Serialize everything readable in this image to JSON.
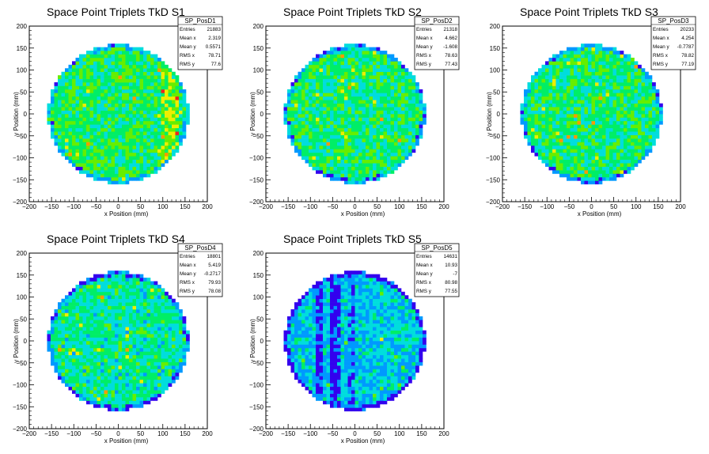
{
  "chart_data": [
    {
      "type": "heatmap",
      "title": "Space Point Triplets TkD S1",
      "xlabel": "x Position (mm)",
      "ylabel": "y Position (mm)",
      "xlim": [
        -200,
        200
      ],
      "ylim": [
        -200,
        200
      ],
      "xticks": [
        "−200",
        "−150",
        "−100",
        "−50",
        "0",
        "50",
        "100",
        "150",
        "200"
      ],
      "yticks": [
        "−200",
        "−150",
        "−100",
        "−50",
        "0",
        "50",
        "100",
        "150",
        "200"
      ],
      "colormap": [
        "#3300ee",
        "#0099ff",
        "#00dddd",
        "#00ee66",
        "#66ee00",
        "#eeee00",
        "#ff9900",
        "#ee2222"
      ],
      "radius_mm": 160,
      "mean_level": 0.45,
      "right_band": true,
      "stats": {
        "name": "SP_PosD1",
        "rows": [
          {
            "label": "Entries",
            "value": "21883"
          },
          {
            "label": "Mean x",
            "value": "2.319"
          },
          {
            "label": "Mean y",
            "value": "0.5571"
          },
          {
            "label": "RMS x",
            "value": "78.71"
          },
          {
            "label": "RMS y",
            "value": "77.6"
          }
        ]
      }
    },
    {
      "type": "heatmap",
      "title": "Space Point Triplets TkD S2",
      "xlabel": "x Position (mm)",
      "ylabel": "y Position (mm)",
      "xlim": [
        -200,
        200
      ],
      "ylim": [
        -200,
        200
      ],
      "xticks": [
        "−200",
        "−150",
        "−100",
        "−50",
        "0",
        "50",
        "100",
        "150",
        "200"
      ],
      "yticks": [
        "−200",
        "−150",
        "−100",
        "−50",
        "0",
        "50",
        "100",
        "150",
        "200"
      ],
      "colormap": [
        "#3300ee",
        "#0099ff",
        "#00dddd",
        "#00ee66",
        "#66ee00",
        "#eeee00",
        "#ff9900",
        "#ee2222"
      ],
      "radius_mm": 160,
      "mean_level": 0.43,
      "stats": {
        "name": "SP_PosD2",
        "rows": [
          {
            "label": "Entries",
            "value": "21318"
          },
          {
            "label": "Mean x",
            "value": "4.662"
          },
          {
            "label": "Mean y",
            "value": "-1.608"
          },
          {
            "label": "RMS x",
            "value": "78.63"
          },
          {
            "label": "RMS y",
            "value": "77.43"
          }
        ]
      }
    },
    {
      "type": "heatmap",
      "title": "Space Point Triplets TkD S3",
      "xlabel": "x Position (mm)",
      "ylabel": "y Position (mm)",
      "xlim": [
        -200,
        200
      ],
      "ylim": [
        -200,
        200
      ],
      "xticks": [
        "−200",
        "−150",
        "−100",
        "−50",
        "0",
        "50",
        "100",
        "150",
        "200"
      ],
      "yticks": [
        "−200",
        "−150",
        "−100",
        "−50",
        "0",
        "50",
        "100",
        "150",
        "200"
      ],
      "colormap": [
        "#3300ee",
        "#0099ff",
        "#00dddd",
        "#00ee66",
        "#66ee00",
        "#eeee00",
        "#ff9900",
        "#ee2222"
      ],
      "radius_mm": 160,
      "mean_level": 0.43,
      "stats": {
        "name": "SP_PosD3",
        "rows": [
          {
            "label": "Entries",
            "value": "20233"
          },
          {
            "label": "Mean x",
            "value": "4.254"
          },
          {
            "label": "Mean y",
            "value": "-0.7787"
          },
          {
            "label": "RMS x",
            "value": "78.82"
          },
          {
            "label": "RMS y",
            "value": "77.19"
          }
        ]
      }
    },
    {
      "type": "heatmap",
      "title": "Space Point Triplets TkD S4",
      "xlabel": "x Position (mm)",
      "ylabel": "y Position (mm)",
      "xlim": [
        -200,
        200
      ],
      "ylim": [
        -200,
        200
      ],
      "xticks": [
        "−200",
        "−150",
        "−100",
        "−50",
        "0",
        "50",
        "100",
        "150",
        "200"
      ],
      "yticks": [
        "−200",
        "−150",
        "−100",
        "−50",
        "0",
        "50",
        "100",
        "150",
        "200"
      ],
      "colormap": [
        "#3300ee",
        "#0099ff",
        "#00dddd",
        "#00ee66",
        "#66ee00",
        "#eeee00",
        "#ff9900",
        "#ee2222"
      ],
      "radius_mm": 160,
      "mean_level": 0.38,
      "stats": {
        "name": "SP_PosD4",
        "rows": [
          {
            "label": "Entries",
            "value": "18801"
          },
          {
            "label": "Mean x",
            "value": "5.419"
          },
          {
            "label": "Mean y",
            "value": "-0.2717"
          },
          {
            "label": "RMS x",
            "value": "79.93"
          },
          {
            "label": "RMS y",
            "value": "78.08"
          }
        ]
      }
    },
    {
      "type": "heatmap",
      "title": "Space Point Triplets TkD S5",
      "xlabel": "x Position (mm)",
      "ylabel": "y Position (mm)",
      "xlim": [
        -200,
        200
      ],
      "ylim": [
        -200,
        200
      ],
      "xticks": [
        "−200",
        "−150",
        "−100",
        "−50",
        "0",
        "50",
        "100",
        "150",
        "200"
      ],
      "yticks": [
        "−200",
        "−150",
        "−100",
        "−50",
        "0",
        "50",
        "100",
        "150",
        "200"
      ],
      "colormap": [
        "#3300ee",
        "#0099ff",
        "#00dddd",
        "#00ee66",
        "#66ee00",
        "#eeee00",
        "#ff9900",
        "#ee2222"
      ],
      "radius_mm": 160,
      "mean_level": 0.27,
      "dead_strips": true,
      "stats": {
        "name": "SP_PosD5",
        "rows": [
          {
            "label": "Entries",
            "value": "14631"
          },
          {
            "label": "Mean x",
            "value": "10.93"
          },
          {
            "label": "Mean y",
            "value": "-7"
          },
          {
            "label": "RMS x",
            "value": "80.98"
          },
          {
            "label": "RMS y",
            "value": "77.55"
          }
        ]
      }
    }
  ]
}
